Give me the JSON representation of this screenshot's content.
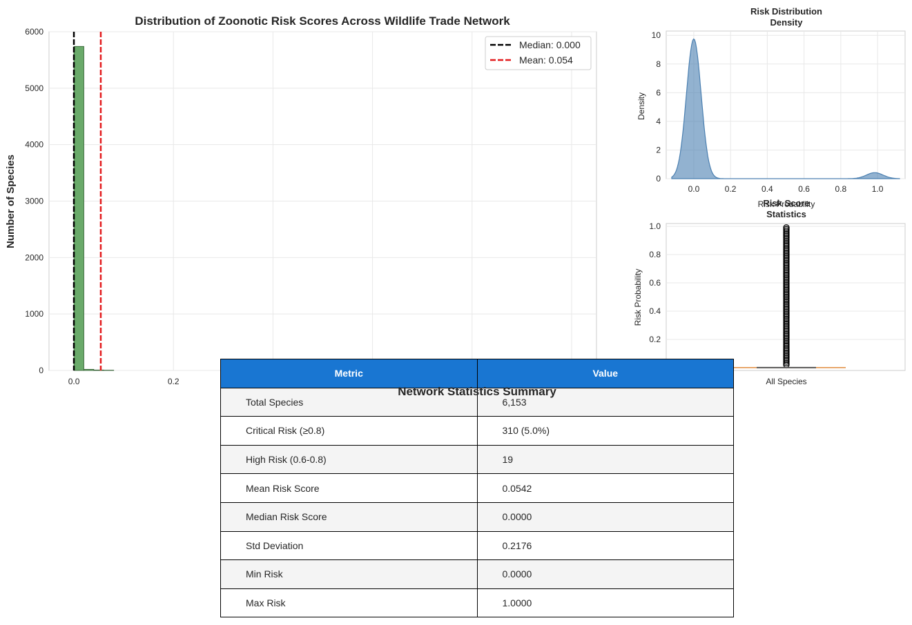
{
  "chart_data": [
    {
      "id": "histogram",
      "type": "bar",
      "title": "Distribution of Zoonotic Risk Scores Across Wildlife Trade Network",
      "xlabel": "",
      "ylabel": "Number of Species",
      "xlim": [
        -0.05,
        1.05
      ],
      "ylim": [
        0,
        6000
      ],
      "xticks": [
        "0.0",
        "0.2"
      ],
      "yticks": [
        "0",
        "1000",
        "2000",
        "3000",
        "4000",
        "5000",
        "6000"
      ],
      "bins": [
        {
          "x0": 0.0,
          "x1": 0.02,
          "count": 5740
        },
        {
          "x0": 0.02,
          "x1": 0.04,
          "count": 20
        },
        {
          "x0": 0.04,
          "x1": 0.06,
          "count": 8
        },
        {
          "x0": 0.06,
          "x1": 0.08,
          "count": 5
        }
      ],
      "bar_color": "#6aaa6a",
      "lines": [
        {
          "label": "Median: 0.000",
          "x": 0.0,
          "color": "#000000"
        },
        {
          "label": "Mean: 0.054",
          "x": 0.054,
          "color": "#e31a1c"
        }
      ],
      "legend": "top-right",
      "grid": true
    },
    {
      "id": "density",
      "type": "area",
      "title": "Risk Distribution\nDensity",
      "xlabel": "Risk Probability",
      "ylabel": "Density",
      "xlim": [
        -0.15,
        1.15
      ],
      "ylim": [
        0,
        10.3
      ],
      "xticks": [
        "0.0",
        "0.2",
        "0.4",
        "0.6",
        "0.8",
        "1.0"
      ],
      "yticks": [
        "0",
        "2",
        "4",
        "6",
        "8",
        "10"
      ],
      "peaks": [
        {
          "center": 0.0,
          "height": 9.75,
          "width": 0.04
        },
        {
          "center": 0.985,
          "height": 0.42,
          "width": 0.045
        }
      ],
      "range": [
        -0.12,
        1.12
      ],
      "color": "#4a7fb0",
      "grid": true
    },
    {
      "id": "boxplot",
      "type": "scatter",
      "title": "Risk Score\nStatistics",
      "xlabel": "",
      "ylabel": "Risk Probability",
      "ylim": [
        -0.02,
        1.02
      ],
      "yticks": [
        "0.2",
        "0.4",
        "0.6",
        "0.8",
        "1.0"
      ],
      "categories": [
        "All Species"
      ],
      "median": 0.0,
      "q1": 0.0,
      "q3": 0.0,
      "outlier_range": [
        0.02,
        1.0
      ],
      "grid": true
    }
  ],
  "table": {
    "title": "Network Statistics Summary",
    "headers": [
      "Metric",
      "Value"
    ],
    "rows": [
      [
        "Total Species",
        "6,153"
      ],
      [
        "Critical Risk (≥0.8)",
        "310 (5.0%)"
      ],
      [
        "High Risk (0.6-0.8)",
        "19"
      ],
      [
        "Mean Risk Score",
        "0.0542"
      ],
      [
        "Median Risk Score",
        "0.0000"
      ],
      [
        "Std Deviation",
        "0.2176"
      ],
      [
        "Min Risk",
        "0.0000"
      ],
      [
        "Max Risk",
        "1.0000"
      ]
    ],
    "header_color": "#1976d2"
  }
}
